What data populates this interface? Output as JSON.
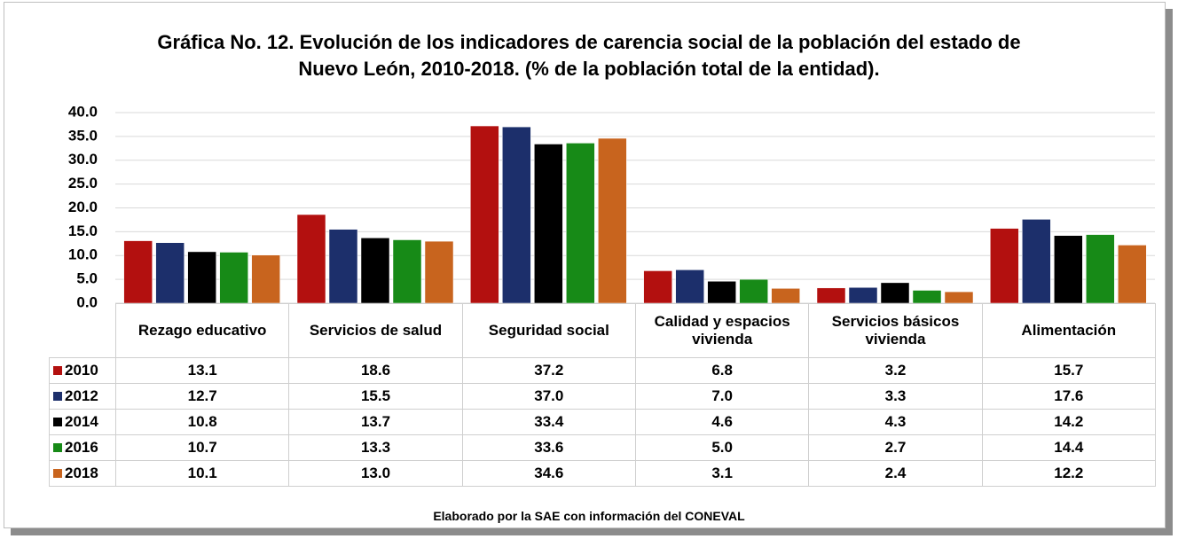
{
  "chart_data": {
    "type": "bar",
    "title": "Gráfica No. 12. Evolución de los indicadores de carencia social de la población del estado de Nuevo León, 2010-2018. (% de la población total de la entidad).",
    "categories": [
      "Rezago educativo",
      "Servicios de salud",
      "Seguridad social",
      "Calidad y espacios vivienda",
      "Servicios básicos vivienda",
      "Alimentación"
    ],
    "series": [
      {
        "name": "2010",
        "color": "#b3100f",
        "values": [
          13.1,
          18.6,
          37.2,
          6.8,
          3.2,
          15.7
        ],
        "value_labels": [
          "13.1",
          "18.6",
          "37.2",
          "6.8",
          "3.2",
          "15.7"
        ]
      },
      {
        "name": "2012",
        "color": "#1c2f6b",
        "values": [
          12.7,
          15.5,
          37.0,
          7.0,
          3.3,
          17.6
        ],
        "value_labels": [
          "12.7",
          "15.5",
          "37.0",
          "7.0",
          "3.3",
          "17.6"
        ]
      },
      {
        "name": "2014",
        "color": "#000000",
        "values": [
          10.8,
          13.7,
          33.4,
          4.6,
          4.3,
          14.2
        ],
        "value_labels": [
          "10.8",
          "13.7",
          "33.4",
          "4.6",
          "4.3",
          "14.2"
        ]
      },
      {
        "name": "2016",
        "color": "#178a17",
        "values": [
          10.7,
          13.3,
          33.6,
          5.0,
          2.7,
          14.4
        ],
        "value_labels": [
          "10.7",
          "13.3",
          "33.6",
          "5.0",
          "2.7",
          "14.4"
        ]
      },
      {
        "name": "2018",
        "color": "#c8641e",
        "values": [
          10.1,
          13.0,
          34.6,
          3.1,
          2.4,
          12.2
        ],
        "value_labels": [
          "10.1",
          "13.0",
          "34.6",
          "3.1",
          "2.4",
          "12.2"
        ]
      }
    ],
    "ylim": [
      0,
      40
    ],
    "yticks": [
      {
        "value": 0,
        "label": "0.0"
      },
      {
        "value": 5,
        "label": "5.0"
      },
      {
        "value": 10,
        "label": "10.0"
      },
      {
        "value": 15,
        "label": "15.0"
      },
      {
        "value": 20,
        "label": "20.0"
      },
      {
        "value": 25,
        "label": "25.0"
      },
      {
        "value": 30,
        "label": "30.0"
      },
      {
        "value": 35,
        "label": "35.0"
      },
      {
        "value": 40,
        "label": "40.0"
      }
    ],
    "grid": true,
    "source": "Elaborado por la SAE con información del CONEVAL"
  }
}
